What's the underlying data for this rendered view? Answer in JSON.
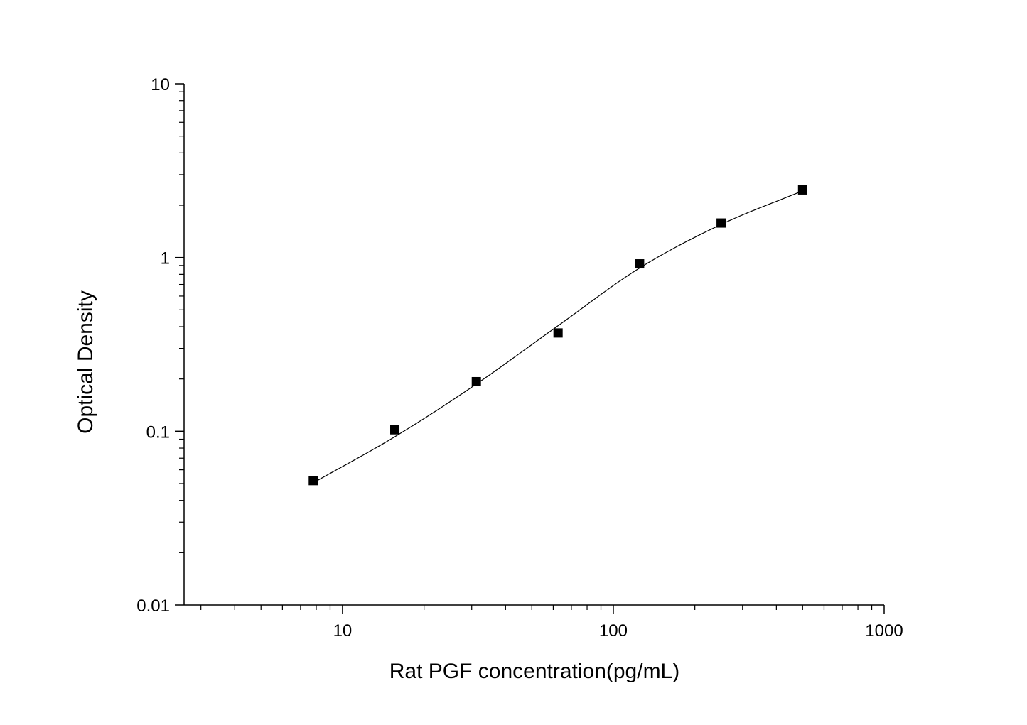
{
  "chart_data": {
    "type": "scatter",
    "xlabel": "Rat PGF concentration(pg/mL)",
    "ylabel": "Optical Density",
    "xscale": "log",
    "yscale": "log",
    "xlim": [
      2.6,
      1000
    ],
    "ylim": [
      0.01,
      10
    ],
    "xticks": [
      {
        "value": 10,
        "label": "10"
      },
      {
        "value": 100,
        "label": "100"
      },
      {
        "value": 1000,
        "label": "1000"
      }
    ],
    "yticks": [
      {
        "value": 0.01,
        "label": "0.01"
      },
      {
        "value": 0.1,
        "label": "0.1"
      },
      {
        "value": 1,
        "label": "1"
      },
      {
        "value": 10,
        "label": "10"
      }
    ],
    "grid": false,
    "legend": "none",
    "marker": "square",
    "color": "#000000",
    "series": [
      {
        "points": [
          {
            "x": 7.8,
            "y": 0.052
          },
          {
            "x": 15.6,
            "y": 0.102
          },
          {
            "x": 31.2,
            "y": 0.193
          },
          {
            "x": 62.5,
            "y": 0.368
          },
          {
            "x": 125,
            "y": 0.92
          },
          {
            "x": 250,
            "y": 1.58
          },
          {
            "x": 500,
            "y": 2.45
          }
        ]
      }
    ],
    "fit_curve": {
      "type": "4PL",
      "points": [
        {
          "x": 7.8,
          "y": 0.0505
        },
        {
          "x": 15.6,
          "y": 0.093
        },
        {
          "x": 31.2,
          "y": 0.187
        },
        {
          "x": 62.5,
          "y": 0.405
        },
        {
          "x": 125,
          "y": 0.87
        },
        {
          "x": 250,
          "y": 1.55
        },
        {
          "x": 500,
          "y": 2.42
        }
      ]
    }
  }
}
